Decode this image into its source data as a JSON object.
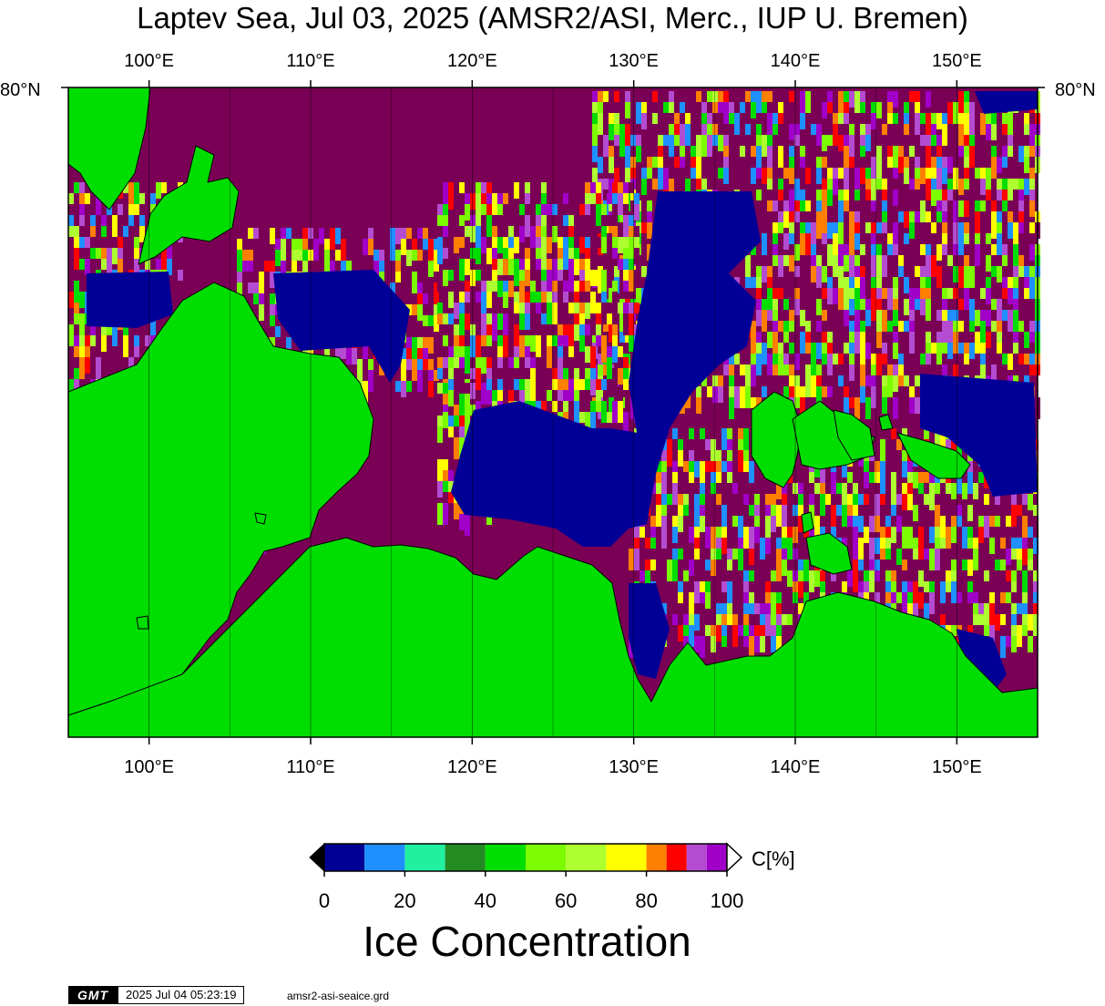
{
  "title": "Laptev Sea, Jul 03, 2025 (AMSR2/ASI, Merc., IUP U. Bremen)",
  "map": {
    "projection": "Mercator",
    "lon_range": [
      95,
      155
    ],
    "lon_ticks": [
      "100°E",
      "110°E",
      "120°E",
      "130°E",
      "140°E",
      "150°E"
    ],
    "lon_tick_values": [
      100,
      110,
      120,
      130,
      140,
      150
    ],
    "lat_label_left": "80°N",
    "lat_label_right": "80°N",
    "land_color": "#00dd00",
    "open_water_color": "#000096",
    "high_ice_color": "#7a0055"
  },
  "colorbar": {
    "unit": "C[%]",
    "tick_labels": [
      "0",
      "20",
      "40",
      "60",
      "80",
      "100"
    ],
    "tick_values": [
      0,
      20,
      40,
      60,
      80,
      100
    ],
    "colors": [
      "#000096",
      "#1e90ff",
      "#20f0a0",
      "#228b22",
      "#00dd00",
      "#7cfc00",
      "#adff2f",
      "#ffff00",
      "#ff7f00",
      "#ff0000",
      "#b44cd2",
      "#a000c8"
    ],
    "bounds": [
      0,
      10,
      20,
      30,
      40,
      50,
      60,
      70,
      80,
      85,
      90,
      95,
      100
    ]
  },
  "subtitle": "Ice Concentration",
  "footer": {
    "logo": "GMT",
    "timestamp": "2025 Jul 04 05:23:19",
    "grid_file": "amsr2-asi-seaice.grd"
  }
}
